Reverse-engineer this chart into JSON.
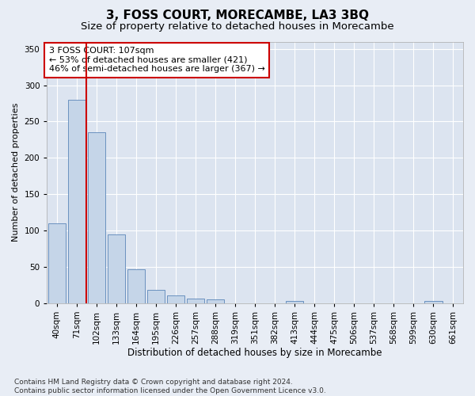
{
  "title": "3, FOSS COURT, MORECAMBE, LA3 3BQ",
  "subtitle": "Size of property relative to detached houses in Morecambe",
  "xlabel": "Distribution of detached houses by size in Morecambe",
  "ylabel": "Number of detached properties",
  "categories": [
    "40sqm",
    "71sqm",
    "102sqm",
    "133sqm",
    "164sqm",
    "195sqm",
    "226sqm",
    "257sqm",
    "288sqm",
    "319sqm",
    "351sqm",
    "382sqm",
    "413sqm",
    "444sqm",
    "475sqm",
    "506sqm",
    "537sqm",
    "568sqm",
    "599sqm",
    "630sqm",
    "661sqm"
  ],
  "values": [
    110,
    280,
    235,
    95,
    47,
    18,
    11,
    6,
    5,
    0,
    0,
    0,
    3,
    0,
    0,
    0,
    0,
    0,
    0,
    3,
    0
  ],
  "bar_color": "#c5d5e8",
  "bar_edge_color": "#5a85b8",
  "vline_color": "#cc0000",
  "vline_index": 2,
  "annotation_text": "3 FOSS COURT: 107sqm\n← 53% of detached houses are smaller (421)\n46% of semi-detached houses are larger (367) →",
  "annotation_box_facecolor": "#ffffff",
  "annotation_box_edgecolor": "#cc0000",
  "ylim": [
    0,
    360
  ],
  "yticks": [
    0,
    50,
    100,
    150,
    200,
    250,
    300,
    350
  ],
  "bg_color": "#e8edf5",
  "plot_bg_color": "#dce4f0",
  "footer_line1": "Contains HM Land Registry data © Crown copyright and database right 2024.",
  "footer_line2": "Contains public sector information licensed under the Open Government Licence v3.0.",
  "title_fontsize": 11,
  "subtitle_fontsize": 9.5,
  "xlabel_fontsize": 8.5,
  "ylabel_fontsize": 8,
  "tick_fontsize": 7.5,
  "annotation_fontsize": 8,
  "footer_fontsize": 6.5
}
